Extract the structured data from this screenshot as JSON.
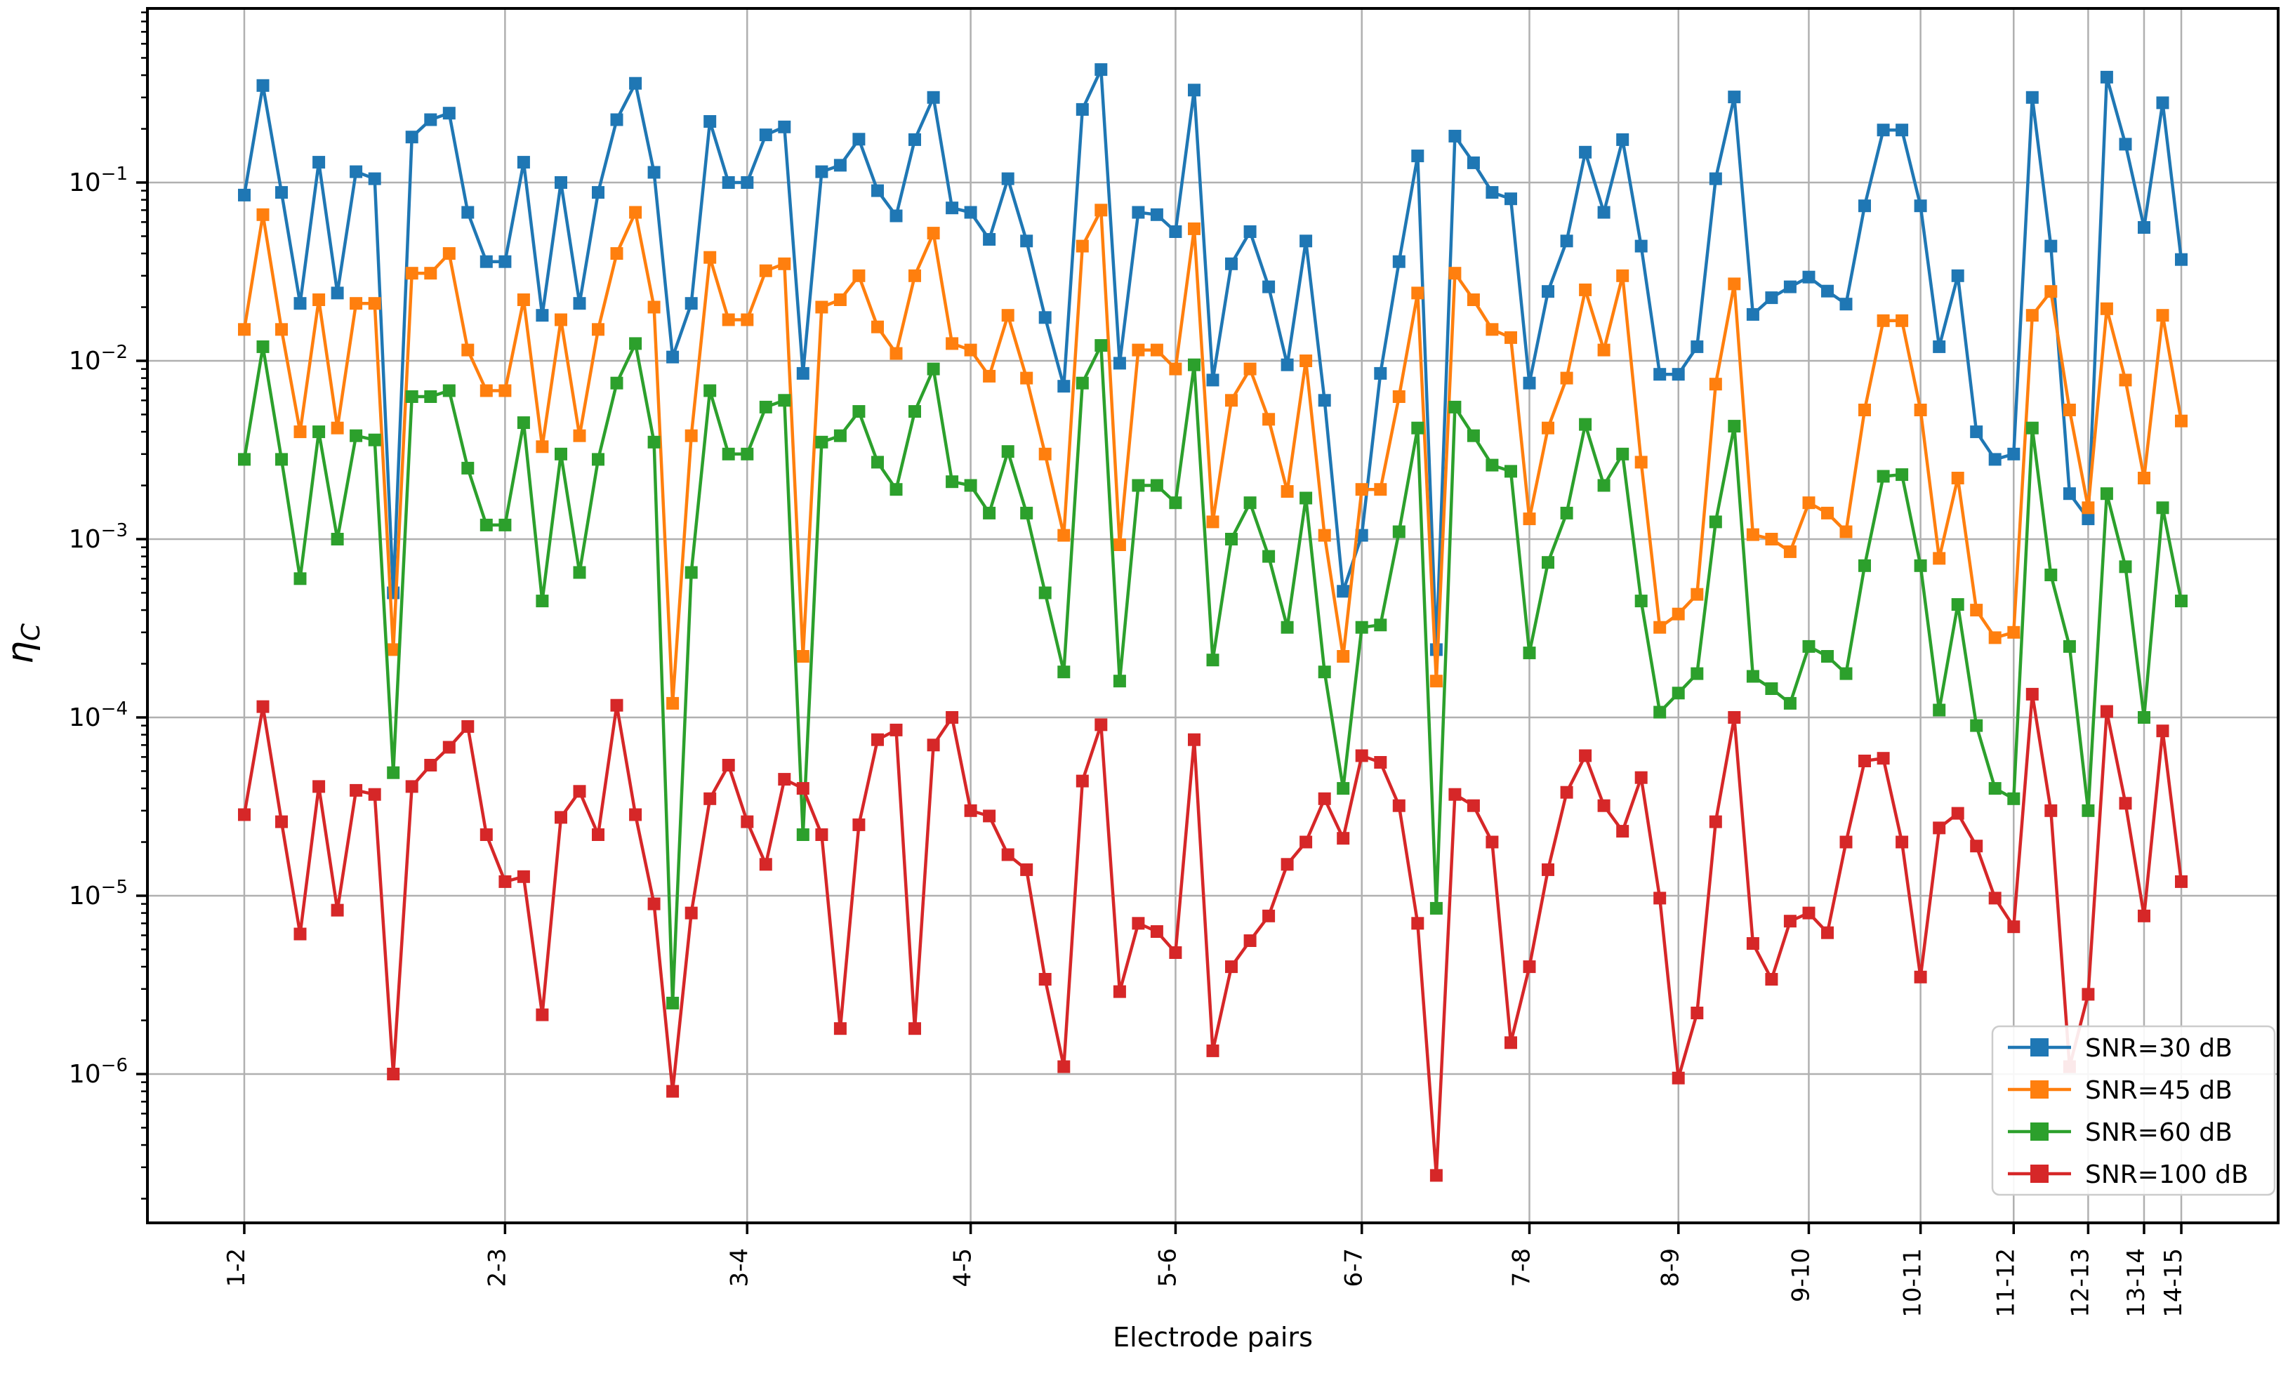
{
  "figure": {
    "background": "#ffffff",
    "xlabel": "Electrode pairs",
    "ylabel_base": "η",
    "ylabel_sub": "C",
    "legend_title": ""
  },
  "chart_data": {
    "type": "line",
    "title": "",
    "xlabel": "Electrode pairs",
    "ylabel": "η_C",
    "yscale": "log",
    "ylim": [
      1.45e-07,
      0.95
    ],
    "xlim_units": [
      -5.2,
      109.2
    ],
    "grid": true,
    "grid_color": "#b0b0b0",
    "legend_position": "lower right",
    "n_points": 105,
    "x_tick_labels": [
      "1-2",
      "2-3",
      "3-4",
      "4-5",
      "5-6",
      "6-7",
      "7-8",
      "8-9",
      "9-10",
      "10-11",
      "11-12",
      "12-13",
      "13-14",
      "14-15"
    ],
    "x_tick_indices": [
      0,
      14,
      27,
      39,
      50,
      60,
      69,
      77,
      84,
      90,
      95,
      99,
      102,
      104
    ],
    "y_tick_exponents": [
      -1,
      -2,
      -3,
      -4,
      -5,
      -6
    ],
    "series": [
      {
        "name": "SNR=30 dB",
        "color": "#1f77b4",
        "marker": "square",
        "values": [
          0.085,
          0.35,
          0.088,
          0.021,
          0.13,
          0.024,
          0.115,
          0.105,
          0.0005,
          0.18,
          0.225,
          0.245,
          0.068,
          0.036,
          0.036,
          0.13,
          0.018,
          0.1,
          0.021,
          0.088,
          0.225,
          0.36,
          0.114,
          0.0105,
          0.021,
          0.22,
          0.1,
          0.1,
          0.185,
          0.205,
          0.0085,
          0.115,
          0.125,
          0.175,
          0.09,
          0.065,
          0.174,
          0.3,
          0.072,
          0.068,
          0.048,
          0.105,
          0.047,
          0.0175,
          0.0072,
          0.257,
          0.43,
          0.0097,
          0.068,
          0.066,
          0.053,
          0.33,
          0.0078,
          0.035,
          0.053,
          0.026,
          0.0095,
          0.047,
          0.006,
          0.00051,
          0.00105,
          0.0085,
          0.036,
          0.141,
          0.00024,
          0.182,
          0.129,
          0.088,
          0.081,
          0.0075,
          0.0245,
          0.047,
          0.148,
          0.068,
          0.174,
          0.044,
          0.0084,
          0.0084,
          0.012,
          0.105,
          0.302,
          0.0182,
          0.0226,
          0.026,
          0.0295,
          0.0246,
          0.0208,
          0.074,
          0.197,
          0.197,
          0.074,
          0.012,
          0.03,
          0.004,
          0.0028,
          0.003,
          0.3,
          0.044,
          0.0018,
          0.0013,
          0.39,
          0.164,
          0.056,
          0.28,
          0.037
        ]
      },
      {
        "name": "SNR=45 dB",
        "color": "#ff7f0e",
        "marker": "square",
        "values": [
          0.015,
          0.066,
          0.015,
          0.004,
          0.022,
          0.0042,
          0.021,
          0.021,
          0.00024,
          0.031,
          0.031,
          0.04,
          0.0115,
          0.0068,
          0.0068,
          0.022,
          0.0033,
          0.017,
          0.0038,
          0.015,
          0.04,
          0.068,
          0.02,
          0.00012,
          0.0038,
          0.038,
          0.017,
          0.017,
          0.032,
          0.035,
          0.00022,
          0.02,
          0.022,
          0.03,
          0.0155,
          0.011,
          0.03,
          0.052,
          0.0125,
          0.0115,
          0.0082,
          0.018,
          0.008,
          0.003,
          0.00105,
          0.044,
          0.07,
          0.00093,
          0.0115,
          0.0115,
          0.009,
          0.055,
          0.00125,
          0.006,
          0.009,
          0.0047,
          0.00185,
          0.01,
          0.00105,
          0.00022,
          0.0019,
          0.0019,
          0.0063,
          0.024,
          0.00016,
          0.031,
          0.022,
          0.015,
          0.0135,
          0.0013,
          0.0042,
          0.008,
          0.025,
          0.0115,
          0.03,
          0.0027,
          0.00032,
          0.00038,
          0.00049,
          0.0074,
          0.027,
          0.00106,
          0.001,
          0.00085,
          0.0016,
          0.0014,
          0.0011,
          0.0053,
          0.0168,
          0.0168,
          0.0053,
          0.00078,
          0.0022,
          0.0004,
          0.00028,
          0.0003,
          0.018,
          0.0245,
          0.0053,
          0.0015,
          0.0196,
          0.0078,
          0.0022,
          0.018,
          0.0046
        ]
      },
      {
        "name": "SNR=60 dB",
        "color": "#2ca02c",
        "marker": "square",
        "values": [
          0.0028,
          0.012,
          0.0028,
          0.0006,
          0.004,
          0.001,
          0.0038,
          0.0036,
          4.9e-05,
          0.0063,
          0.0063,
          0.0068,
          0.0025,
          0.0012,
          0.0012,
          0.0045,
          0.00045,
          0.003,
          0.00065,
          0.0028,
          0.0075,
          0.0125,
          0.0035,
          2.5e-06,
          0.00065,
          0.0068,
          0.003,
          0.003,
          0.0055,
          0.006,
          2.2e-05,
          0.0035,
          0.0038,
          0.0052,
          0.0027,
          0.0019,
          0.0052,
          0.009,
          0.0021,
          0.002,
          0.0014,
          0.0031,
          0.0014,
          0.0005,
          0.00018,
          0.0075,
          0.0122,
          0.00016,
          0.002,
          0.002,
          0.0016,
          0.0095,
          0.00021,
          0.001,
          0.0016,
          0.0008,
          0.00032,
          0.0017,
          0.00018,
          4e-05,
          0.00032,
          0.00033,
          0.0011,
          0.0042,
          8.5e-06,
          0.0055,
          0.0038,
          0.0026,
          0.0024,
          0.00023,
          0.00074,
          0.0014,
          0.0044,
          0.002,
          0.003,
          0.00045,
          0.000107,
          0.000137,
          0.000176,
          0.00125,
          0.0043,
          0.00017,
          0.000145,
          0.00012,
          0.00025,
          0.00022,
          0.000176,
          0.00071,
          0.00225,
          0.0023,
          0.00071,
          0.00011,
          0.00043,
          9e-05,
          4e-05,
          3.5e-05,
          0.0042,
          0.00063,
          0.00025,
          3e-05,
          0.0018,
          0.0007,
          0.0001,
          0.0015,
          0.00045
        ]
      },
      {
        "name": "SNR=100 dB",
        "color": "#d62728",
        "marker": "square",
        "values": [
          2.85e-05,
          0.000115,
          2.6e-05,
          6.1e-06,
          4.1e-05,
          8.3e-06,
          3.9e-05,
          3.7e-05,
          1e-06,
          4.1e-05,
          5.4e-05,
          6.8e-05,
          8.9e-05,
          2.2e-05,
          1.2e-05,
          1.28e-05,
          2.15e-06,
          2.75e-05,
          3.85e-05,
          2.2e-05,
          0.000117,
          2.85e-05,
          9e-06,
          8e-07,
          8e-06,
          3.5e-05,
          5.4e-05,
          2.6e-05,
          1.5e-05,
          4.5e-05,
          4e-05,
          2.2e-05,
          1.8e-06,
          2.5e-05,
          7.5e-05,
          8.5e-05,
          1.8e-06,
          7e-05,
          0.0001,
          3e-05,
          2.8e-05,
          1.7e-05,
          1.4e-05,
          3.4e-06,
          1.1e-06,
          4.4e-05,
          9.1e-05,
          2.9e-06,
          7e-06,
          6.3e-06,
          4.8e-06,
          7.5e-05,
          1.35e-06,
          4e-06,
          5.6e-06,
          7.7e-06,
          1.5e-05,
          2e-05,
          3.5e-05,
          2.1e-05,
          6.1e-05,
          5.6e-05,
          3.2e-05,
          7e-06,
          2.7e-07,
          3.7e-05,
          3.2e-05,
          2e-05,
          1.5e-06,
          4e-06,
          1.4e-05,
          3.8e-05,
          6.1e-05,
          3.2e-05,
          2.3e-05,
          4.6e-05,
          9.7e-06,
          9.5e-07,
          2.2e-06,
          2.6e-05,
          0.0001,
          5.4e-06,
          3.4e-06,
          7.2e-06,
          8e-06,
          6.2e-06,
          2e-05,
          5.7e-05,
          5.9e-05,
          2e-05,
          3.5e-06,
          2.4e-05,
          2.9e-05,
          1.9e-05,
          9.7e-06,
          6.7e-06,
          0.000135,
          3e-05,
          1.1e-06,
          2.8e-06,
          0.000108,
          3.3e-05,
          7.7e-06,
          8.4e-05,
          1.2e-05
        ]
      }
    ]
  },
  "legend": {
    "items": [
      {
        "label": "SNR=30 dB",
        "color": "#1f77b4"
      },
      {
        "label": "SNR=45 dB",
        "color": "#ff7f0e"
      },
      {
        "label": "SNR=60 dB",
        "color": "#2ca02c"
      },
      {
        "label": "SNR=100 dB",
        "color": "#d62728"
      }
    ]
  }
}
